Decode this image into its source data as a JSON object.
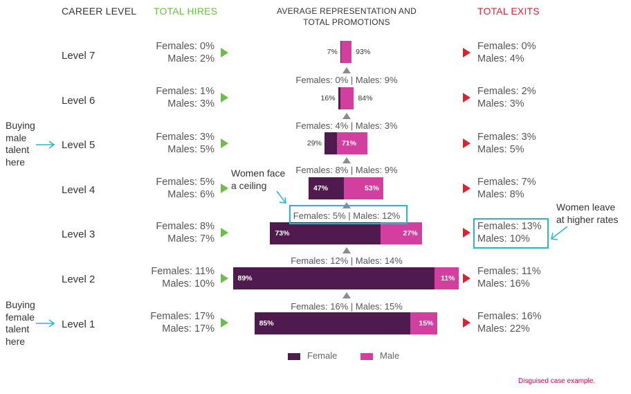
{
  "colors": {
    "female": "#4f1a4e",
    "male": "#d23f9e",
    "hires_accent": "#6abf45",
    "exits_accent": "#e0202f",
    "callout": "#26b6d0",
    "footnote": "#d2004b"
  },
  "headers": {
    "career_level": "CAREER LEVEL",
    "total_hires": "TOTAL HIRES",
    "center_line1": "AVERAGE REPRESENTATION AND",
    "center_line2": "TOTAL PROMOTIONS",
    "total_exits": "TOTAL EXITS"
  },
  "chart_data": {
    "type": "bar",
    "categories": [
      "Level 7",
      "Level 6",
      "Level 5",
      "Level 4",
      "Level 3",
      "Level 2",
      "Level 1"
    ],
    "series": [
      {
        "name": "Female",
        "values": [
          7,
          16,
          29,
          47,
          73,
          89,
          85
        ]
      },
      {
        "name": "Male",
        "values": [
          93,
          84,
          71,
          53,
          27,
          11,
          15
        ]
      }
    ],
    "pct_labels": {
      "female": [
        "7%",
        "16%",
        "29%",
        "47%",
        "73%",
        "89%",
        "85%"
      ],
      "male": [
        "93%",
        "84%",
        "71%",
        "53%",
        "27%",
        "11%",
        "15%"
      ]
    },
    "bar_length_relative": [
      0.05,
      0.07,
      0.19,
      0.33,
      0.67,
      1.0,
      0.81
    ],
    "legend": [
      "Female",
      "Male"
    ],
    "legend_position": "bottom"
  },
  "rows": [
    {
      "level": "Level 7",
      "hires_f": "Females: 0%",
      "hires_m": "Males: 2%",
      "exits_f": "Females: 0%",
      "exits_m": "Males: 4%"
    },
    {
      "level": "Level 6",
      "hires_f": "Females: 1%",
      "hires_m": "Males: 3%",
      "exits_f": "Females: 2%",
      "exits_m": "Males: 3%"
    },
    {
      "level": "Level 5",
      "hires_f": "Females: 3%",
      "hires_m": "Males: 5%",
      "exits_f": "Females: 3%",
      "exits_m": "Males: 5%"
    },
    {
      "level": "Level 4",
      "hires_f": "Females: 5%",
      "hires_m": "Males: 6%",
      "exits_f": "Females: 7%",
      "exits_m": "Males: 8%"
    },
    {
      "level": "Level 3",
      "hires_f": "Females: 8%",
      "hires_m": "Males: 7%",
      "exits_f": "Females: 13%",
      "exits_m": "Males: 10%"
    },
    {
      "level": "Level 2",
      "hires_f": "Females: 11%",
      "hires_m": "Males: 10%",
      "exits_f": "Females: 11%",
      "exits_m": "Males: 16%"
    },
    {
      "level": "Level 1",
      "hires_f": "Females: 17%",
      "hires_m": "Males: 17%",
      "exits_f": "Females: 16%",
      "exits_m": "Males: 22%"
    }
  ],
  "promotions": [
    "Females: 0% | Males: 9%",
    "Females: 4% | Males: 3%",
    "Females: 8% | Males: 9%",
    "Females: 5% | Males: 12%",
    "Females: 12% | Males: 14%",
    "Females: 16% | Males: 15%"
  ],
  "annotations": {
    "buying_male": [
      "Buying",
      "male",
      "talent",
      "here"
    ],
    "buying_female": [
      "Buying",
      "female",
      "talent",
      "here"
    ],
    "ceiling": [
      "Women face",
      "a ceiling"
    ],
    "leave": [
      "Women leave",
      "at higher rates"
    ]
  },
  "footnote": "Disguised case example."
}
